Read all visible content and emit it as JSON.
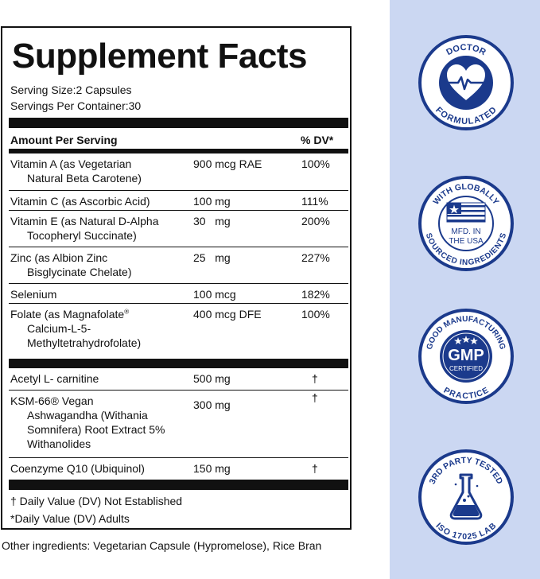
{
  "facts": {
    "title": "Supplement Facts",
    "serving_size": "Serving Size:2 Capsules",
    "servings_per_container": "Servings Per Container:30",
    "header_amount": "Amount Per Serving",
    "header_dv": "% DV*",
    "rows": [
      {
        "name_line1": "Vitamin A (as Vegetarian",
        "name_line2": "Natural Beta Carotene)",
        "amount": "900 mcg RAE",
        "dv": "100%"
      },
      {
        "name_line1": "Vitamin C (as Ascorbic Acid)",
        "amount": "100 mg",
        "dv": "111%"
      },
      {
        "name_line1": "Vitamin E (as Natural D-Alpha",
        "name_line2": "Tocopheryl Succinate)",
        "amount": "30   mg",
        "dv": "200%"
      },
      {
        "name_line1": "Zinc (as Albion Zinc",
        "name_line2": "Bisglycinate Chelate)",
        "amount": "25   mg",
        "dv": "227%"
      },
      {
        "name_line1": "Selenium",
        "amount": "100 mcg",
        "dv": "182%"
      },
      {
        "name_line1": "Folate (as Magnafolate",
        "name_line1_sup": "®",
        "name_line2": "Calcium-L-5-",
        "name_line3": "Methyltetrahydrofolate)",
        "amount": "400 mcg DFE",
        "dv": "100%"
      },
      {
        "name_line1": "Acetyl L- carnitine",
        "amount": "500 mg",
        "dv": "†"
      },
      {
        "name_line1": "KSM-66® Vegan",
        "name_line2": "Ashwagandha (Withania",
        "name_line3": "Somnifera) Root Extract 5%",
        "name_line4": "Withanolides",
        "amount": "300 mg",
        "dv": "†"
      },
      {
        "name_line1": "Coenzyme Q10 (Ubiquinol)",
        "amount": "150 mg",
        "dv": "†"
      }
    ],
    "footnote_dagger": "† Daily Value (DV) Not Established",
    "footnote_star": "*Daily Value (DV) Adults"
  },
  "other_ingredients": "Other ingredients: Vegetarian Capsule (Hypromelose), Rice Bran",
  "badges": {
    "doctor": {
      "top": "DOCTOR",
      "bottom": "FORMULATED"
    },
    "usa": {
      "top": "WITH GLOBALLY",
      "bottom": "SOURCED INGREDIENTS",
      "center_line1": "MFD. IN",
      "center_line2": "THE USA"
    },
    "gmp": {
      "top": "GOOD MANUFACTURING",
      "bottom": "PRACTICE",
      "center_main": "GMP",
      "center_sub": "CERTIFIED"
    },
    "lab": {
      "top": "3RD PARTY TESTED",
      "bottom": "ISO 17025 LAB"
    }
  },
  "colors": {
    "badge_blue": "#1b3a8c",
    "panel_bg": "#cbd7f2"
  }
}
